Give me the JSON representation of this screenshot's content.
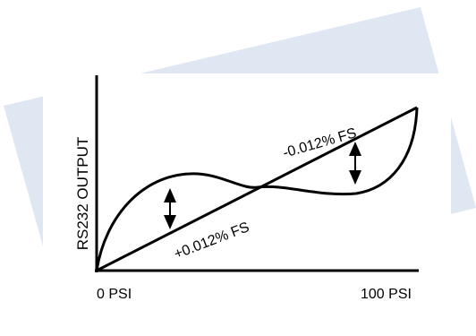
{
  "diagram": {
    "y_axis_label": "RS232 OUTPUT",
    "x_start_label": "0 PSI",
    "x_end_label": "100 PSI",
    "upper_annotation": "-0.012% FS",
    "lower_annotation": "+0.012% FS",
    "colors": {
      "background_band": "#dfe7f3",
      "panel": "#ffffff",
      "ink": "#000000"
    },
    "icons": [
      "double-arrow-icon"
    ]
  }
}
